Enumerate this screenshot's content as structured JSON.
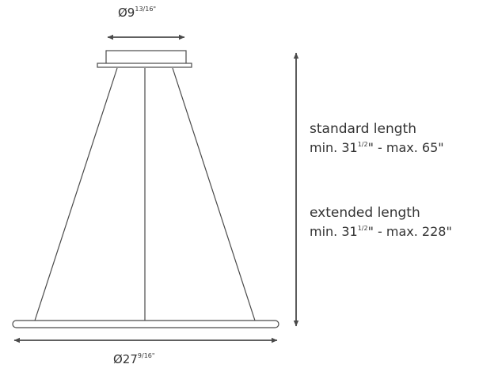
{
  "dimensions": {
    "canopy_diameter": {
      "prefix": "Ø9",
      "fraction": "13/16",
      "unit": "\""
    },
    "ring_diameter": {
      "prefix": "Ø27",
      "fraction": "9/16",
      "unit": "\""
    }
  },
  "specs": {
    "standard": {
      "heading": "standard length",
      "min_label": "min. 31",
      "min_fraction": "1/2",
      "max_text": "\" - max. 65\""
    },
    "extended": {
      "heading": "extended length",
      "min_label": "min. 31",
      "min_fraction": "1/2",
      "max_text": "\" - max. 228\""
    }
  },
  "colors": {
    "line": "#4a4a4a",
    "text": "#333333",
    "background": "#ffffff"
  }
}
